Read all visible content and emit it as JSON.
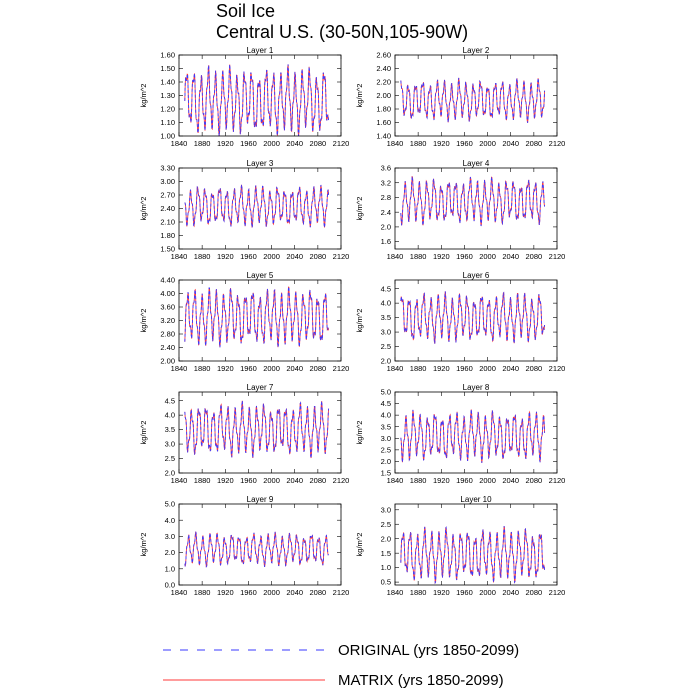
{
  "figure": {
    "title_line1": "Soil Ice",
    "title_line2": "Central U.S. (30-50N,105-90W)"
  },
  "legend": {
    "original": {
      "label": "ORIGINAL (yrs 1850-2099)",
      "color": "#3a3aff",
      "style": "dashed"
    },
    "matrix": {
      "label": "MATRIX (yrs 1850-2099)",
      "color": "#ff3a3a",
      "style": "solid"
    }
  },
  "chart_data": [
    {
      "type": "line",
      "title": "Layer 1",
      "ylabel": "kg/m^2",
      "xlim": [
        1840,
        2120
      ],
      "ylim": [
        1.0,
        1.6
      ],
      "yticks": [
        "1.00",
        "1.10",
        "1.20",
        "1.30",
        "1.40",
        "1.50",
        "1.60"
      ],
      "xticks": [
        "1840",
        "1880",
        "1920",
        "1960",
        "2000",
        "2040",
        "2080",
        "2120"
      ],
      "period_years": 12.5,
      "x_start": 1850,
      "x_end": 2099,
      "series": [
        {
          "name": "ORIGINAL (yrs 1850-2099)",
          "mean": 1.26,
          "amplitude": 0.22
        },
        {
          "name": "MATRIX (yrs 1850-2099)",
          "mean": 1.26,
          "amplitude": 0.22
        }
      ]
    },
    {
      "type": "line",
      "title": "Layer 2",
      "ylabel": "kg/m^2",
      "xlim": [
        1840,
        2120
      ],
      "ylim": [
        1.4,
        2.6
      ],
      "yticks": [
        "1.40",
        "1.60",
        "1.80",
        "2.00",
        "2.20",
        "2.40",
        "2.60"
      ],
      "xticks": [
        "1840",
        "1880",
        "1920",
        "1960",
        "2000",
        "2040",
        "2080",
        "2120"
      ],
      "period_years": 12.5,
      "x_start": 1850,
      "x_end": 2099,
      "series": [
        {
          "name": "ORIGINAL (yrs 1850-2099)",
          "mean": 1.93,
          "amplitude": 0.27
        },
        {
          "name": "MATRIX (yrs 1850-2099)",
          "mean": 1.93,
          "amplitude": 0.27
        }
      ]
    },
    {
      "type": "line",
      "title": "Layer 3",
      "ylabel": "kg/m^2",
      "xlim": [
        1840,
        2120
      ],
      "ylim": [
        1.5,
        3.3
      ],
      "yticks": [
        "1.50",
        "1.80",
        "2.10",
        "2.40",
        "2.70",
        "3.00",
        "3.30"
      ],
      "xticks": [
        "1840",
        "1880",
        "1920",
        "1960",
        "2000",
        "2040",
        "2080",
        "2120"
      ],
      "period_years": 12.5,
      "x_start": 1850,
      "x_end": 2099,
      "series": [
        {
          "name": "ORIGINAL (yrs 1850-2099)",
          "mean": 2.45,
          "amplitude": 0.4
        },
        {
          "name": "MATRIX (yrs 1850-2099)",
          "mean": 2.45,
          "amplitude": 0.4
        }
      ]
    },
    {
      "type": "line",
      "title": "Layer 4",
      "ylabel": "kg/m^2",
      "xlim": [
        1840,
        2120
      ],
      "ylim": [
        1.4,
        3.6
      ],
      "yticks": [
        "1.6",
        "2.0",
        "2.4",
        "2.8",
        "3.2",
        "3.6"
      ],
      "xticks": [
        "1840",
        "1880",
        "1920",
        "1960",
        "2000",
        "2040",
        "2080",
        "2120"
      ],
      "period_years": 12.5,
      "x_start": 1850,
      "x_end": 2099,
      "series": [
        {
          "name": "ORIGINAL (yrs 1850-2099)",
          "mean": 2.7,
          "amplitude": 0.55
        },
        {
          "name": "MATRIX (yrs 1850-2099)",
          "mean": 2.7,
          "amplitude": 0.55
        }
      ]
    },
    {
      "type": "line",
      "title": "Layer 5",
      "ylabel": "kg/m^2",
      "xlim": [
        1840,
        2120
      ],
      "ylim": [
        2.0,
        4.4
      ],
      "yticks": [
        "2.00",
        "2.40",
        "2.80",
        "3.20",
        "3.60",
        "4.00",
        "4.40"
      ],
      "xticks": [
        "1840",
        "1880",
        "1920",
        "1960",
        "2000",
        "2040",
        "2080",
        "2120"
      ],
      "period_years": 12.5,
      "x_start": 1850,
      "x_end": 2099,
      "series": [
        {
          "name": "ORIGINAL (yrs 1850-2099)",
          "mean": 3.3,
          "amplitude": 0.75
        },
        {
          "name": "MATRIX (yrs 1850-2099)",
          "mean": 3.3,
          "amplitude": 0.75
        }
      ]
    },
    {
      "type": "line",
      "title": "Layer 6",
      "ylabel": "kg/m^2",
      "xlim": [
        1840,
        2120
      ],
      "ylim": [
        2.0,
        4.8
      ],
      "yticks": [
        "2.0",
        "2.5",
        "3.0",
        "3.5",
        "4.0",
        "4.5"
      ],
      "xticks": [
        "1840",
        "1880",
        "1920",
        "1960",
        "2000",
        "2040",
        "2080",
        "2120"
      ],
      "period_years": 12.5,
      "x_start": 1850,
      "x_end": 2099,
      "series": [
        {
          "name": "ORIGINAL (yrs 1850-2099)",
          "mean": 3.5,
          "amplitude": 0.75
        },
        {
          "name": "MATRIX (yrs 1850-2099)",
          "mean": 3.5,
          "amplitude": 0.75
        }
      ]
    },
    {
      "type": "line",
      "title": "Layer 7",
      "ylabel": "kg/m^2",
      "xlim": [
        1840,
        2120
      ],
      "ylim": [
        2.0,
        4.8
      ],
      "yticks": [
        "2.0",
        "2.5",
        "3.0",
        "3.5",
        "4.0",
        "4.5"
      ],
      "xticks": [
        "1840",
        "1880",
        "1920",
        "1960",
        "2000",
        "2040",
        "2080",
        "2120"
      ],
      "period_years": 12.5,
      "x_start": 1850,
      "x_end": 2099,
      "series": [
        {
          "name": "ORIGINAL (yrs 1850-2099)",
          "mean": 3.5,
          "amplitude": 0.8
        },
        {
          "name": "MATRIX (yrs 1850-2099)",
          "mean": 3.5,
          "amplitude": 0.8
        }
      ]
    },
    {
      "type": "line",
      "title": "Layer 8",
      "ylabel": "kg/m^2",
      "xlim": [
        1840,
        2120
      ],
      "ylim": [
        1.5,
        5.0
      ],
      "yticks": [
        "1.5",
        "2.0",
        "2.5",
        "3.0",
        "3.5",
        "4.0",
        "4.5",
        "5.0"
      ],
      "xticks": [
        "1840",
        "1880",
        "1920",
        "1960",
        "2000",
        "2040",
        "2080",
        "2120"
      ],
      "period_years": 12.5,
      "x_start": 1850,
      "x_end": 2099,
      "series": [
        {
          "name": "ORIGINAL (yrs 1850-2099)",
          "mean": 3.1,
          "amplitude": 0.95
        },
        {
          "name": "MATRIX (yrs 1850-2099)",
          "mean": 3.1,
          "amplitude": 0.95
        }
      ]
    },
    {
      "type": "line",
      "title": "Layer 9",
      "ylabel": "kg/m^2",
      "xlim": [
        1840,
        2120
      ],
      "ylim": [
        0.0,
        5.0
      ],
      "yticks": [
        "0.0",
        "1.0",
        "2.0",
        "3.0",
        "4.0",
        "5.0"
      ],
      "xticks": [
        "1840",
        "1880",
        "1920",
        "1960",
        "2000",
        "2040",
        "2080",
        "2120"
      ],
      "period_years": 12.5,
      "x_start": 1850,
      "x_end": 2099,
      "series": [
        {
          "name": "ORIGINAL (yrs 1850-2099)",
          "mean": 2.2,
          "amplitude": 0.9
        },
        {
          "name": "MATRIX (yrs 1850-2099)",
          "mean": 2.2,
          "amplitude": 0.9
        }
      ]
    },
    {
      "type": "line",
      "title": "Layer 10",
      "ylabel": "kg/m^2",
      "xlim": [
        1840,
        2120
      ],
      "ylim": [
        0.4,
        3.2
      ],
      "yticks": [
        "0.5",
        "1.0",
        "1.5",
        "2.0",
        "2.5",
        "3.0"
      ],
      "xticks": [
        "1840",
        "1880",
        "1920",
        "1960",
        "2000",
        "2040",
        "2080",
        "2120"
      ],
      "period_years": 12.5,
      "x_start": 1850,
      "x_end": 2099,
      "series": [
        {
          "name": "ORIGINAL (yrs 1850-2099)",
          "mean": 1.45,
          "amplitude": 0.8
        },
        {
          "name": "MATRIX (yrs 1850-2099)",
          "mean": 1.45,
          "amplitude": 0.8
        }
      ]
    }
  ]
}
